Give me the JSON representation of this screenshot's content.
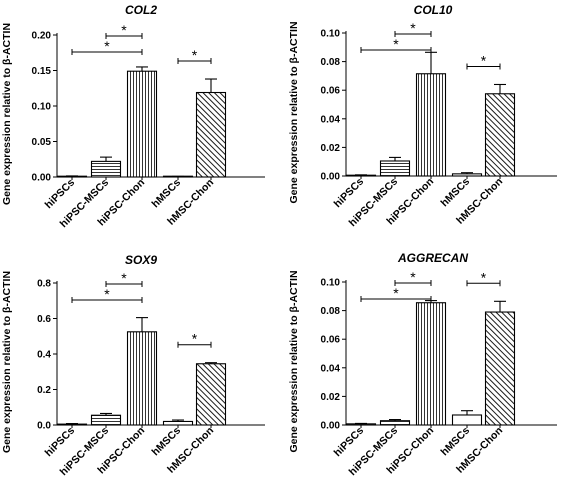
{
  "chart_data": [
    {
      "type": "bar",
      "title": "COL2",
      "ylabel": "Gene expression relative to β-ACTIN",
      "categories": [
        "hiPSCs",
        "hiPSC-MSCs",
        "hiPSC-Chon",
        "hMSCs",
        "hMSC-Chon"
      ],
      "values": [
        0.001,
        0.022,
        0.149,
        0.0005,
        0.119
      ],
      "errors": [
        0.0005,
        0.006,
        0.006,
        0.0003,
        0.019
      ],
      "ylim": [
        0,
        0.2
      ],
      "yticks": [
        "0.00",
        "0.05",
        "0.10",
        "0.15",
        "0.20"
      ],
      "significance": [
        {
          "from": 1,
          "to": 2,
          "label": "*"
        },
        {
          "from": 0,
          "to": 2,
          "label": "*"
        },
        {
          "from": 3,
          "to": 4,
          "label": "*"
        }
      ]
    },
    {
      "type": "bar",
      "title": "COL10",
      "ylabel": "Gene expression relative to β-ACTIN",
      "categories": [
        "hiPSCs",
        "hiPSC-MSCs",
        "hiPSC-Chon",
        "hMSCs",
        "hMSC-Chon"
      ],
      "values": [
        0.0005,
        0.0105,
        0.0715,
        0.0015,
        0.0575
      ],
      "errors": [
        0.0003,
        0.0025,
        0.015,
        0.0008,
        0.0065
      ],
      "ylim": [
        0,
        0.1
      ],
      "yticks": [
        "0.00",
        "0.02",
        "0.04",
        "0.06",
        "0.08",
        "0.10"
      ],
      "significance": [
        {
          "from": 1,
          "to": 2,
          "label": "*"
        },
        {
          "from": 0,
          "to": 2,
          "label": "*"
        },
        {
          "from": 3,
          "to": 4,
          "label": "*"
        }
      ]
    },
    {
      "type": "bar",
      "title": "SOX9",
      "ylabel": "Gene expression relative to β-ACTIN",
      "categories": [
        "hiPSCs",
        "hiPSC-MSCs",
        "hiPSC-Chon",
        "hMSCs",
        "hMSC-Chon"
      ],
      "values": [
        0.005,
        0.055,
        0.525,
        0.02,
        0.345
      ],
      "errors": [
        0.003,
        0.01,
        0.08,
        0.008,
        0.006
      ],
      "ylim": [
        0,
        0.8
      ],
      "yticks": [
        "0.0",
        "0.2",
        "0.4",
        "0.6",
        "0.8"
      ],
      "significance": [
        {
          "from": 1,
          "to": 2,
          "label": "*"
        },
        {
          "from": 0,
          "to": 2,
          "label": "*"
        },
        {
          "from": 3,
          "to": 4,
          "label": "*"
        }
      ]
    },
    {
      "type": "bar",
      "title": "AGGRECAN",
      "ylabel": "Gene expression relative to β-ACTIN",
      "categories": [
        "hiPSCs",
        "hiPSC-MSCs",
        "hiPSC-Chon",
        "hMSCs",
        "hMSC-Chon"
      ],
      "values": [
        0.0008,
        0.003,
        0.0855,
        0.007,
        0.079
      ],
      "errors": [
        0.0003,
        0.0008,
        0.0015,
        0.003,
        0.0075
      ],
      "ylim": [
        0,
        0.1
      ],
      "yticks": [
        "0.00",
        "0.02",
        "0.04",
        "0.06",
        "0.08",
        "0.10"
      ],
      "significance": [
        {
          "from": 1,
          "to": 2,
          "label": "*"
        },
        {
          "from": 0,
          "to": 2,
          "label": "*"
        },
        {
          "from": 3,
          "to": 4,
          "label": "*"
        }
      ]
    }
  ],
  "colors": {
    "bar_fill": "#ffffff",
    "bar_stroke": "#000000",
    "hatch": "#000000",
    "axis": "#000000"
  }
}
